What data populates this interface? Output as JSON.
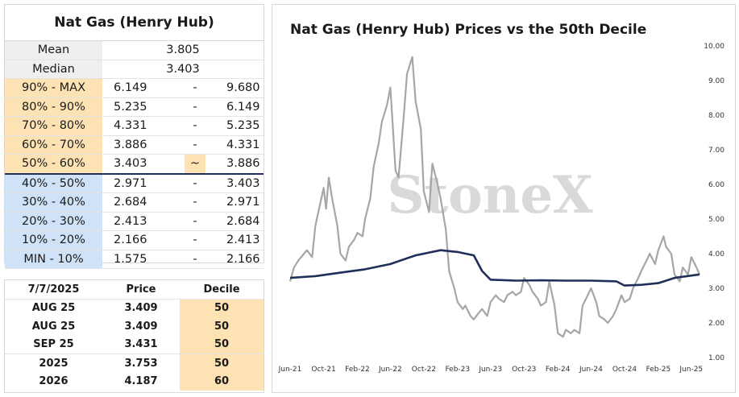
{
  "decile_table": {
    "title": "Nat Gas (Henry Hub)",
    "mean_label": "Mean",
    "mean_value": "3.805",
    "median_label": "Median",
    "median_value": "3.403",
    "rows": [
      {
        "label": "90% - MAX",
        "low": "6.149",
        "sep": "-",
        "high": "9.680",
        "color": "orange"
      },
      {
        "label": "80% - 90%",
        "low": "5.235",
        "sep": "-",
        "high": "6.149",
        "color": "orange"
      },
      {
        "label": "70% - 80%",
        "low": "4.331",
        "sep": "-",
        "high": "5.235",
        "color": "orange"
      },
      {
        "label": "60% - 70%",
        "low": "3.886",
        "sep": "-",
        "high": "4.331",
        "color": "orange"
      },
      {
        "label": "50% - 60%",
        "low": "3.403",
        "sep": "~",
        "high": "3.886",
        "color": "orange"
      },
      {
        "label": "40% - 50%",
        "low": "2.971",
        "sep": "-",
        "high": "3.403",
        "color": "blue"
      },
      {
        "label": "30% - 40%",
        "low": "2.684",
        "sep": "-",
        "high": "2.971",
        "color": "blue"
      },
      {
        "label": "20% - 30%",
        "low": "2.413",
        "sep": "-",
        "high": "2.684",
        "color": "blue"
      },
      {
        "label": "10% - 20%",
        "low": "2.166",
        "sep": "-",
        "high": "2.413",
        "color": "blue"
      },
      {
        "label": "MIN - 10%",
        "low": "1.575",
        "sep": "-",
        "high": "2.166",
        "color": "blue"
      }
    ]
  },
  "price_table": {
    "headers": [
      "7/7/2025",
      "Price",
      "Decile"
    ],
    "rows": [
      {
        "contract": "AUG 25",
        "price": "3.409",
        "decile": "50"
      },
      {
        "contract": "AUG 25",
        "price": "3.409",
        "decile": "50"
      },
      {
        "contract": "SEP 25",
        "price": "3.431",
        "decile": "50"
      },
      {
        "contract": "2025",
        "price": "3.753",
        "decile": "50"
      },
      {
        "contract": "2026",
        "price": "4.187",
        "decile": "60"
      }
    ]
  },
  "colors": {
    "orange": "#fde3b4",
    "blue": "#cfe2f7",
    "price_line": "#a6a6a6",
    "decile_line": "#1f2f5a",
    "watermark": "#d9d9d9"
  },
  "watermark": "StoneX",
  "chart_data": {
    "type": "line",
    "title": "Nat Gas (Henry Hub) Prices vs the 50th Decile",
    "xlabel": "",
    "ylabel": "",
    "ylim": [
      1.0,
      10.0
    ],
    "yticks": [
      "1.00",
      "2.00",
      "3.00",
      "4.00",
      "5.00",
      "6.00",
      "7.00",
      "8.00",
      "9.00",
      "10.00"
    ],
    "x_tick_labels": [
      "Jun-21",
      "Oct-21",
      "Feb-22",
      "Jun-22",
      "Oct-22",
      "Feb-23",
      "Jun-23",
      "Oct-23",
      "Feb-24",
      "Jun-24",
      "Oct-24",
      "Feb-25",
      "Jun-25"
    ],
    "x_range": [
      "2021-06",
      "2025-07"
    ],
    "grid": false,
    "series": [
      {
        "name": "",
        "color": "#a6a6a6",
        "points": [
          [
            "2021-06",
            3.2
          ],
          [
            "2021-06-15",
            3.6
          ],
          [
            "2021-07",
            3.8
          ],
          [
            "2021-08",
            4.1
          ],
          [
            "2021-08-20",
            3.9
          ],
          [
            "2021-09",
            4.8
          ],
          [
            "2021-09-20",
            5.5
          ],
          [
            "2021-10",
            5.9
          ],
          [
            "2021-10-10",
            5.3
          ],
          [
            "2021-10-20",
            6.2
          ],
          [
            "2021-11",
            5.6
          ],
          [
            "2021-11-20",
            4.8
          ],
          [
            "2021-12",
            4.0
          ],
          [
            "2021-12-20",
            3.8
          ],
          [
            "2022-01",
            4.2
          ],
          [
            "2022-01-20",
            4.4
          ],
          [
            "2022-02",
            4.6
          ],
          [
            "2022-02-20",
            4.5
          ],
          [
            "2022-03",
            5.0
          ],
          [
            "2022-03-20",
            5.6
          ],
          [
            "2022-04",
            6.5
          ],
          [
            "2022-04-20",
            7.2
          ],
          [
            "2022-05",
            7.8
          ],
          [
            "2022-05-20",
            8.3
          ],
          [
            "2022-06",
            8.8
          ],
          [
            "2022-06-20",
            6.4
          ],
          [
            "2022-07",
            6.2
          ],
          [
            "2022-07-20",
            8.0
          ],
          [
            "2022-08",
            9.2
          ],
          [
            "2022-08-20",
            9.68
          ],
          [
            "2022-09",
            8.4
          ],
          [
            "2022-09-20",
            7.6
          ],
          [
            "2022-10",
            5.8
          ],
          [
            "2022-10-20",
            5.2
          ],
          [
            "2022-11",
            6.6
          ],
          [
            "2022-11-20",
            6.0
          ],
          [
            "2022-12",
            5.6
          ],
          [
            "2022-12-20",
            4.7
          ],
          [
            "2023-01",
            3.5
          ],
          [
            "2023-01-20",
            3.0
          ],
          [
            "2023-02",
            2.6
          ],
          [
            "2023-02-20",
            2.4
          ],
          [
            "2023-03",
            2.5
          ],
          [
            "2023-03-20",
            2.2
          ],
          [
            "2023-04",
            2.1
          ],
          [
            "2023-04-20",
            2.3
          ],
          [
            "2023-05",
            2.4
          ],
          [
            "2023-05-20",
            2.2
          ],
          [
            "2023-06",
            2.6
          ],
          [
            "2023-06-20",
            2.8
          ],
          [
            "2023-07",
            2.7
          ],
          [
            "2023-07-20",
            2.6
          ],
          [
            "2023-08",
            2.8
          ],
          [
            "2023-08-20",
            2.9
          ],
          [
            "2023-09",
            2.8
          ],
          [
            "2023-09-20",
            2.9
          ],
          [
            "2023-10",
            3.3
          ],
          [
            "2023-10-20",
            3.1
          ],
          [
            "2023-11",
            2.9
          ],
          [
            "2023-11-20",
            2.7
          ],
          [
            "2023-12",
            2.5
          ],
          [
            "2023-12-20",
            2.6
          ],
          [
            "2024-01",
            3.2
          ],
          [
            "2024-01-20",
            2.5
          ],
          [
            "2024-02",
            1.7
          ],
          [
            "2024-02-20",
            1.6
          ],
          [
            "2024-03",
            1.8
          ],
          [
            "2024-03-20",
            1.7
          ],
          [
            "2024-04",
            1.8
          ],
          [
            "2024-04-20",
            1.7
          ],
          [
            "2024-05",
            2.5
          ],
          [
            "2024-05-20",
            2.8
          ],
          [
            "2024-06",
            3.0
          ],
          [
            "2024-06-20",
            2.6
          ],
          [
            "2024-07",
            2.2
          ],
          [
            "2024-07-20",
            2.1
          ],
          [
            "2024-08",
            2.0
          ],
          [
            "2024-08-20",
            2.2
          ],
          [
            "2024-09",
            2.4
          ],
          [
            "2024-09-20",
            2.8
          ],
          [
            "2024-10",
            2.6
          ],
          [
            "2024-10-20",
            2.7
          ],
          [
            "2024-11",
            3.0
          ],
          [
            "2024-11-20",
            3.3
          ],
          [
            "2024-12",
            3.5
          ],
          [
            "2024-12-20",
            3.8
          ],
          [
            "2025-01",
            4.0
          ],
          [
            "2025-01-20",
            3.7
          ],
          [
            "2025-02",
            4.1
          ],
          [
            "2025-02-20",
            4.5
          ],
          [
            "2025-03",
            4.2
          ],
          [
            "2025-03-20",
            4.0
          ],
          [
            "2025-04",
            3.4
          ],
          [
            "2025-04-20",
            3.2
          ],
          [
            "2025-05",
            3.6
          ],
          [
            "2025-05-20",
            3.4
          ],
          [
            "2025-06",
            3.9
          ],
          [
            "2025-06-20",
            3.6
          ],
          [
            "2025-07",
            3.4
          ]
        ]
      },
      {
        "name": "",
        "color": "#1f2f5a",
        "points": [
          [
            "2021-06",
            3.3
          ],
          [
            "2021-09",
            3.35
          ],
          [
            "2021-12",
            3.45
          ],
          [
            "2022-03",
            3.55
          ],
          [
            "2022-06",
            3.7
          ],
          [
            "2022-09",
            3.95
          ],
          [
            "2022-12",
            4.1
          ],
          [
            "2023-02",
            4.05
          ],
          [
            "2023-04",
            3.95
          ],
          [
            "2023-05",
            3.5
          ],
          [
            "2023-06",
            3.25
          ],
          [
            "2023-09",
            3.22
          ],
          [
            "2023-12",
            3.23
          ],
          [
            "2024-03",
            3.22
          ],
          [
            "2024-06",
            3.22
          ],
          [
            "2024-09",
            3.2
          ],
          [
            "2024-10",
            3.08
          ],
          [
            "2024-12",
            3.1
          ],
          [
            "2025-02",
            3.15
          ],
          [
            "2025-04",
            3.3
          ],
          [
            "2025-07",
            3.4
          ]
        ]
      }
    ]
  }
}
